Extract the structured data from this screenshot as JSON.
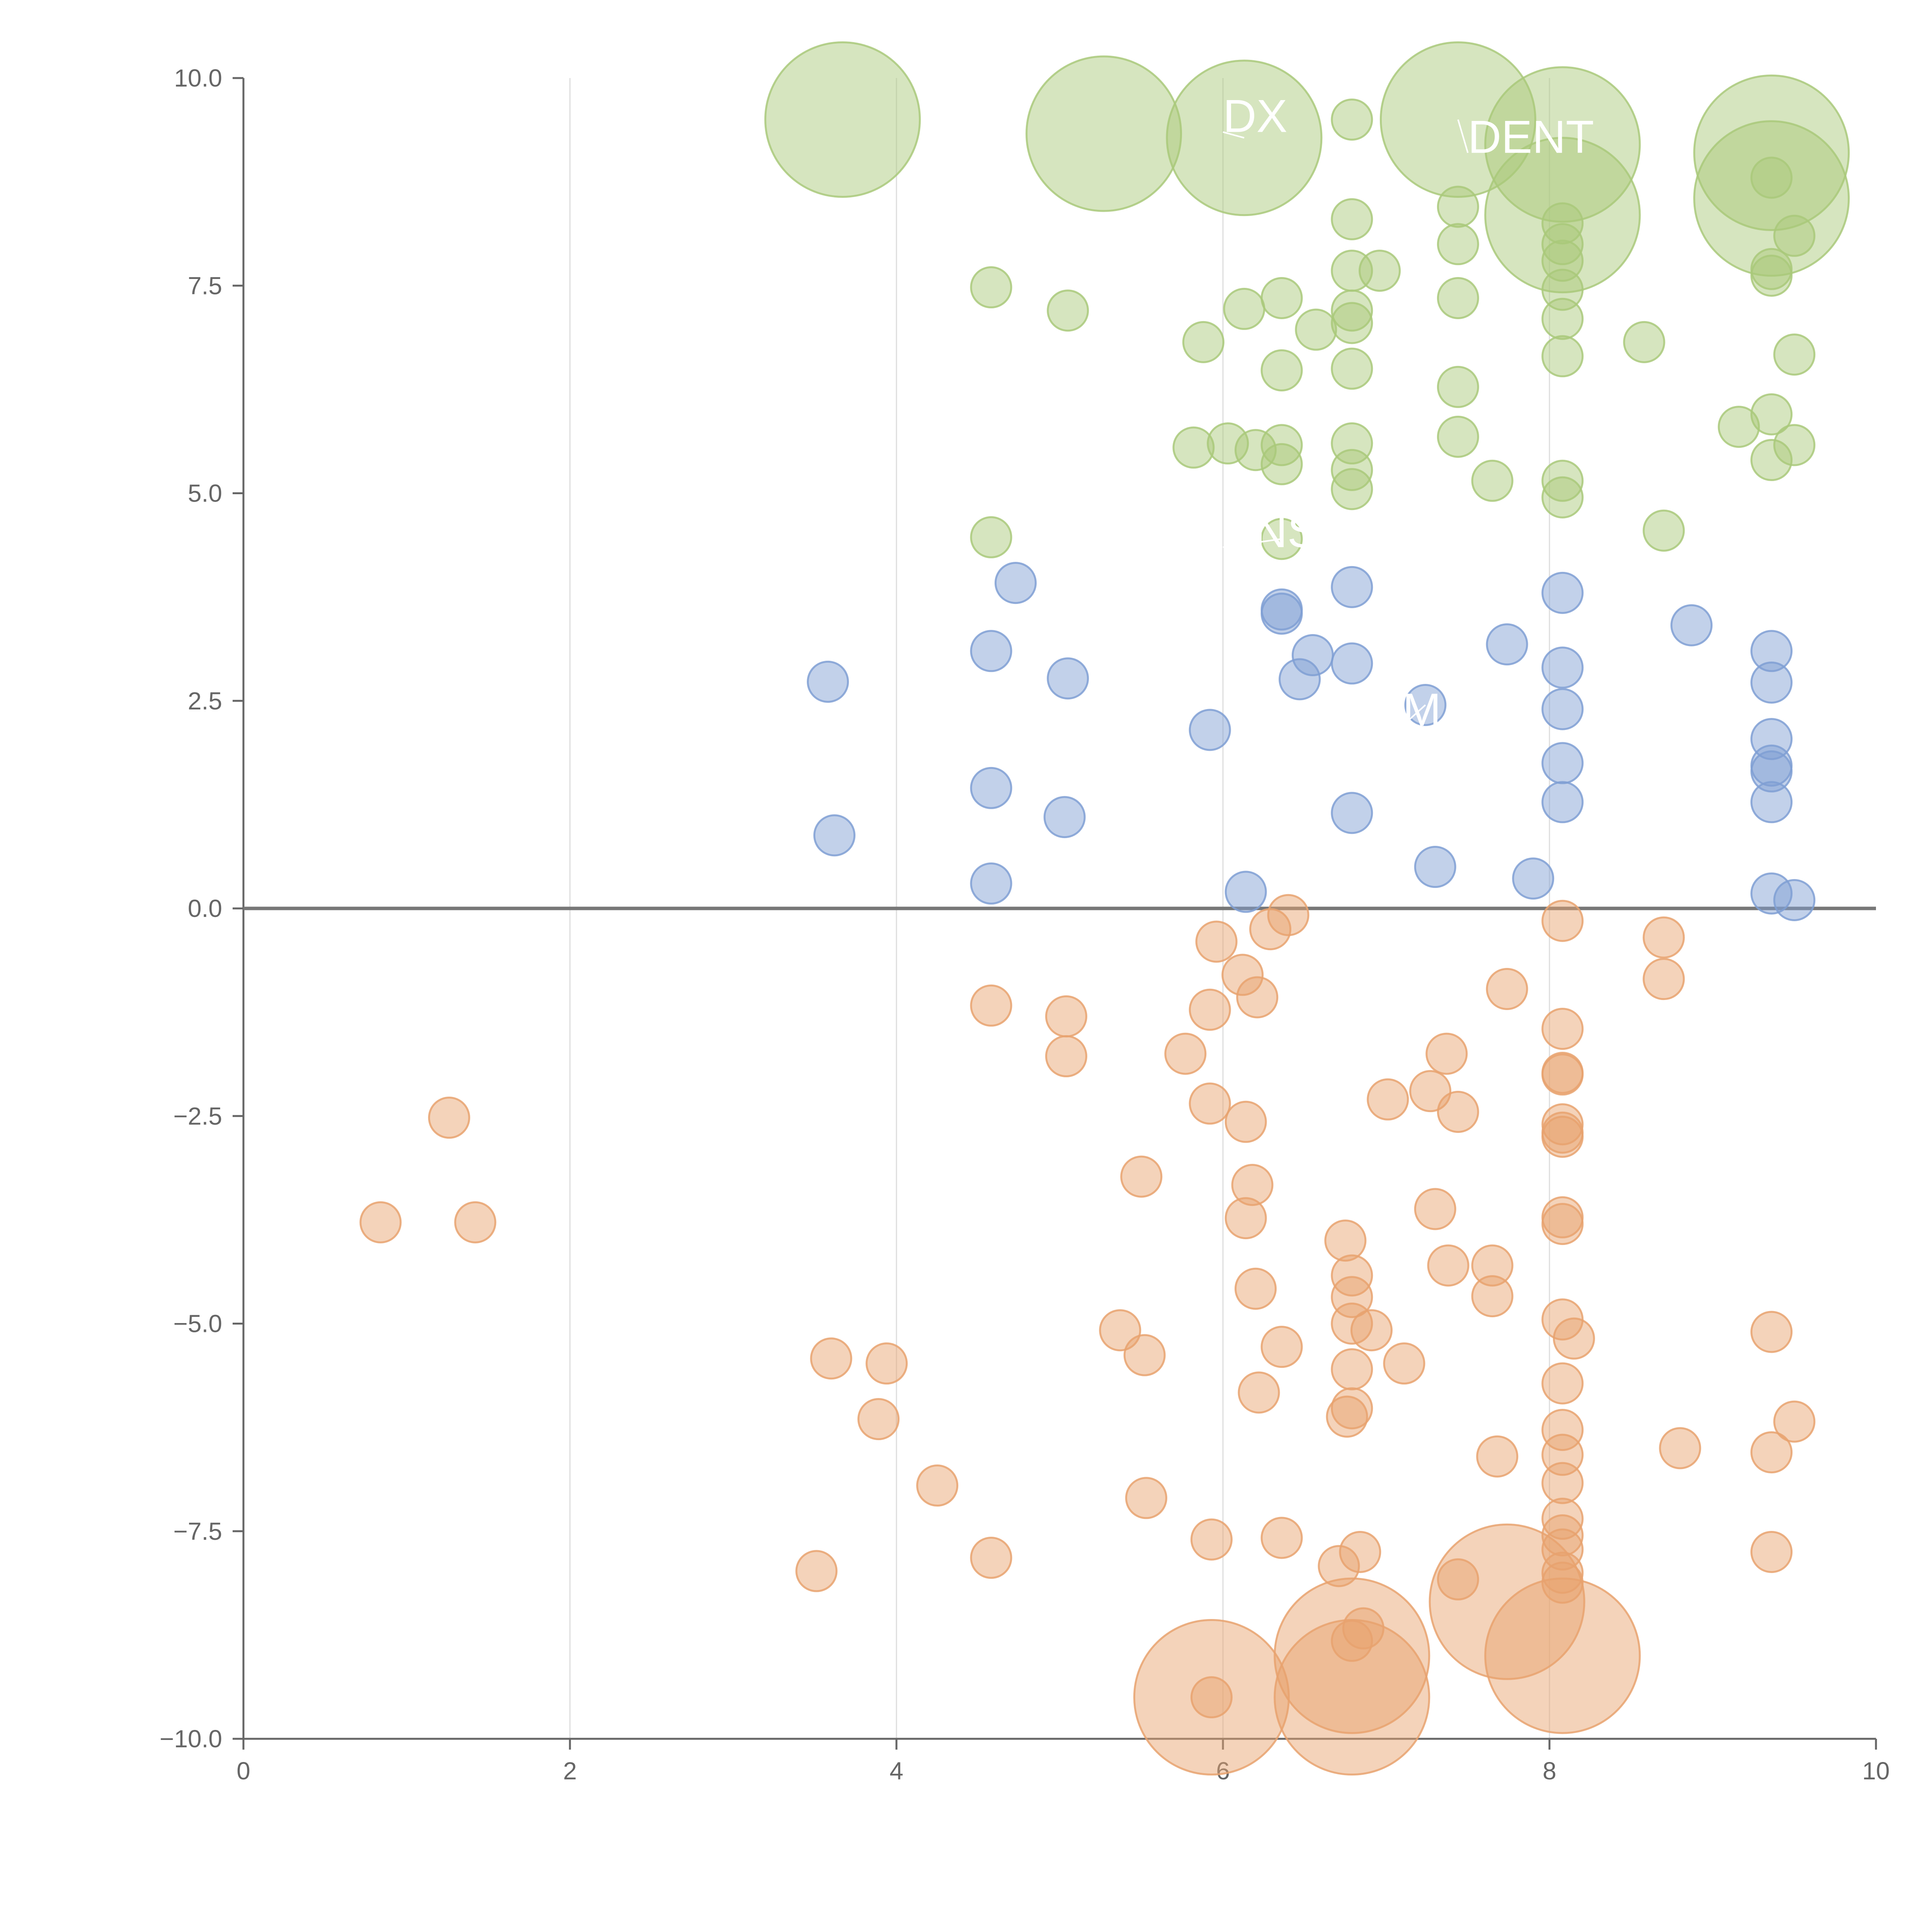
{
  "chart_data": {
    "type": "scatter",
    "title": "",
    "xlabel": "",
    "ylabel": "",
    "xlim": [
      0,
      10
    ],
    "ylim": [
      -10,
      10
    ],
    "x_ticks": [
      "0",
      "2",
      "4",
      "6",
      "8",
      "10"
    ],
    "y_ticks": [
      "10.0",
      "7.5",
      "5.0",
      "2.5",
      "0.0",
      "−2.5",
      "−5.0",
      "−7.5",
      "−10.0"
    ],
    "grid": "vertical",
    "zero_line": true,
    "colors": {
      "green": "#a9c97a",
      "blue": "#7f9fd3",
      "orange": "#e7a26f"
    },
    "series": [
      {
        "color": "green",
        "points": [
          [
            3.67,
            9.5,
            2
          ],
          [
            5.27,
            9.33,
            2
          ],
          [
            6.13,
            9.28,
            2
          ],
          [
            6.79,
            9.5,
            0.4
          ],
          [
            7.44,
            9.5,
            2
          ],
          [
            8.08,
            9.2,
            2
          ],
          [
            9.36,
            9.1,
            2
          ],
          [
            9.36,
            8.55,
            2
          ],
          [
            8.08,
            8.35,
            2
          ],
          [
            9.36,
            8.8,
            0.4
          ],
          [
            6.79,
            8.3,
            0.4
          ],
          [
            7.44,
            8.45,
            0.4
          ],
          [
            7.44,
            8.0,
            0.4
          ],
          [
            8.08,
            8.25,
            0.4
          ],
          [
            8.08,
            8.0,
            0.4
          ],
          [
            8.08,
            7.8,
            0.4
          ],
          [
            9.5,
            8.1,
            0.4
          ],
          [
            4.58,
            7.48,
            0.4
          ],
          [
            5.05,
            7.2,
            0.4
          ],
          [
            6.13,
            7.22,
            0.4
          ],
          [
            6.36,
            7.35,
            0.4
          ],
          [
            6.79,
            7.68,
            0.4
          ],
          [
            6.96,
            7.68,
            0.4
          ],
          [
            6.79,
            7.2,
            0.4
          ],
          [
            6.79,
            7.05,
            0.4
          ],
          [
            6.57,
            6.97,
            0.4
          ],
          [
            5.88,
            6.82,
            0.4
          ],
          [
            7.44,
            7.35,
            0.4
          ],
          [
            8.08,
            7.45,
            0.4
          ],
          [
            8.08,
            7.1,
            0.4
          ],
          [
            9.36,
            7.7,
            0.4
          ],
          [
            9.36,
            7.62,
            0.4
          ],
          [
            8.58,
            6.82,
            0.4
          ],
          [
            6.36,
            6.48,
            0.4
          ],
          [
            6.79,
            6.5,
            0.4
          ],
          [
            7.44,
            6.28,
            0.4
          ],
          [
            8.08,
            6.65,
            0.4
          ],
          [
            9.5,
            6.67,
            0.4
          ],
          [
            5.82,
            5.55,
            0.4
          ],
          [
            6.03,
            5.6,
            0.4
          ],
          [
            6.2,
            5.52,
            0.4
          ],
          [
            6.36,
            5.58,
            0.4
          ],
          [
            6.36,
            5.35,
            0.4
          ],
          [
            6.79,
            5.6,
            0.4
          ],
          [
            6.79,
            5.28,
            0.4
          ],
          [
            6.79,
            5.05,
            0.4
          ],
          [
            7.44,
            5.68,
            0.4
          ],
          [
            7.65,
            5.15,
            0.4
          ],
          [
            8.08,
            5.15,
            0.4
          ],
          [
            8.08,
            4.95,
            0.4
          ],
          [
            9.16,
            5.8,
            0.4
          ],
          [
            9.36,
            5.95,
            0.4
          ],
          [
            9.36,
            5.4,
            0.4
          ],
          [
            9.5,
            5.58,
            0.4
          ],
          [
            4.58,
            4.47,
            0.4
          ],
          [
            6.36,
            4.45,
            0.4
          ],
          [
            8.7,
            4.55,
            0.4
          ]
        ]
      },
      {
        "color": "blue",
        "points": [
          [
            3.58,
            2.73,
            0.4
          ],
          [
            3.62,
            0.88,
            0.4
          ],
          [
            4.58,
            3.1,
            0.4
          ],
          [
            4.58,
            1.45,
            0.4
          ],
          [
            4.58,
            0.3,
            0.4
          ],
          [
            4.73,
            3.92,
            0.4
          ],
          [
            5.05,
            2.77,
            0.4
          ],
          [
            5.03,
            1.1,
            0.4
          ],
          [
            5.92,
            2.15,
            0.4
          ],
          [
            6.14,
            0.2,
            0.4
          ],
          [
            6.36,
            3.6,
            0.4
          ],
          [
            6.36,
            3.55,
            0.4
          ],
          [
            6.47,
            2.76,
            0.4
          ],
          [
            6.55,
            3.05,
            0.4
          ],
          [
            6.79,
            3.87,
            0.4
          ],
          [
            6.79,
            2.95,
            0.4
          ],
          [
            6.79,
            1.15,
            0.4
          ],
          [
            7.24,
            2.45,
            0.4
          ],
          [
            7.3,
            0.5,
            0.4
          ],
          [
            7.74,
            3.18,
            0.4
          ],
          [
            7.9,
            0.36,
            0.4
          ],
          [
            8.08,
            3.8,
            0.4
          ],
          [
            8.08,
            2.9,
            0.4
          ],
          [
            8.08,
            2.4,
            0.4
          ],
          [
            8.08,
            1.75,
            0.4
          ],
          [
            8.08,
            1.28,
            0.4
          ],
          [
            8.87,
            3.41,
            0.4
          ],
          [
            9.36,
            3.1,
            0.4
          ],
          [
            9.36,
            2.72,
            0.4
          ],
          [
            9.36,
            2.04,
            0.4
          ],
          [
            9.36,
            1.72,
            0.4
          ],
          [
            9.36,
            1.65,
            0.4
          ],
          [
            9.36,
            1.28,
            0.4
          ],
          [
            9.36,
            0.18,
            0.4
          ],
          [
            9.5,
            0.1,
            0.4
          ]
        ]
      },
      {
        "color": "orange",
        "points": [
          [
            0.84,
            -3.78,
            0.4
          ],
          [
            1.26,
            -2.52,
            0.4
          ],
          [
            1.42,
            -3.78,
            0.4
          ],
          [
            3.51,
            -7.98,
            0.4
          ],
          [
            3.6,
            -5.42,
            0.4
          ],
          [
            3.89,
            -6.15,
            0.4
          ],
          [
            3.94,
            -5.48,
            0.4
          ],
          [
            4.25,
            -6.95,
            0.4
          ],
          [
            4.58,
            -1.17,
            0.4
          ],
          [
            4.58,
            -7.82,
            0.4
          ],
          [
            5.04,
            -1.3,
            0.4
          ],
          [
            5.04,
            -1.78,
            0.4
          ],
          [
            5.37,
            -5.08,
            0.4
          ],
          [
            5.5,
            -3.23,
            0.4
          ],
          [
            5.52,
            -5.38,
            0.4
          ],
          [
            5.53,
            -7.1,
            0.4
          ],
          [
            5.77,
            -1.75,
            0.4
          ],
          [
            5.92,
            -1.22,
            0.4
          ],
          [
            5.92,
            -2.35,
            0.4
          ],
          [
            5.93,
            -7.6,
            0.4
          ],
          [
            5.93,
            -9.5,
            2
          ],
          [
            5.93,
            -9.5,
            0.4
          ],
          [
            5.96,
            -0.4,
            0.4
          ],
          [
            6.12,
            -0.8,
            0.4
          ],
          [
            6.14,
            -2.57,
            0.4
          ],
          [
            6.14,
            -3.73,
            0.4
          ],
          [
            6.18,
            -3.33,
            0.4
          ],
          [
            6.2,
            -4.58,
            0.4
          ],
          [
            6.21,
            -1.07,
            0.4
          ],
          [
            6.22,
            -5.83,
            0.4
          ],
          [
            6.29,
            -0.25,
            0.4
          ],
          [
            6.36,
            -5.28,
            0.4
          ],
          [
            6.36,
            -7.58,
            0.4
          ],
          [
            6.4,
            -0.08,
            0.4
          ],
          [
            6.71,
            -7.92,
            0.4
          ],
          [
            6.75,
            -4.0,
            0.4
          ],
          [
            6.76,
            -6.12,
            0.4
          ],
          [
            6.79,
            -4.42,
            0.4
          ],
          [
            6.79,
            -4.68,
            0.4
          ],
          [
            6.79,
            -5.0,
            0.4
          ],
          [
            6.79,
            -5.55,
            0.4
          ],
          [
            6.79,
            -6.02,
            0.4
          ],
          [
            6.79,
            -8.82,
            0.4
          ],
          [
            6.79,
            -9.0,
            2
          ],
          [
            6.79,
            -9.5,
            2
          ],
          [
            6.84,
            -7.75,
            0.4
          ],
          [
            6.86,
            -8.67,
            0.4
          ],
          [
            6.91,
            -5.08,
            0.4
          ],
          [
            7.01,
            -2.3,
            0.4
          ],
          [
            7.11,
            -5.48,
            0.4
          ],
          [
            7.27,
            -2.2,
            0.4
          ],
          [
            7.3,
            -3.62,
            0.4
          ],
          [
            7.37,
            -1.75,
            0.4
          ],
          [
            7.38,
            -4.3,
            0.4
          ],
          [
            7.44,
            -2.45,
            0.4
          ],
          [
            7.44,
            -8.08,
            0.4
          ],
          [
            7.65,
            -4.3,
            0.4
          ],
          [
            7.65,
            -4.67,
            0.4
          ],
          [
            7.68,
            -6.6,
            0.4
          ],
          [
            7.74,
            -8.35,
            2
          ],
          [
            7.74,
            -0.97,
            0.4
          ],
          [
            8.08,
            -0.15,
            0.4
          ],
          [
            8.08,
            -1.45,
            0.4
          ],
          [
            8.08,
            -1.98,
            0.4
          ],
          [
            8.08,
            -2.0,
            0.4
          ],
          [
            8.08,
            -2.6,
            0.4
          ],
          [
            8.08,
            -2.7,
            0.4
          ],
          [
            8.08,
            -2.75,
            0.4
          ],
          [
            8.08,
            -3.72,
            0.4
          ],
          [
            8.08,
            -3.8,
            0.4
          ],
          [
            8.08,
            -4.95,
            0.4
          ],
          [
            8.15,
            -5.18,
            0.4
          ],
          [
            8.08,
            -5.72,
            0.4
          ],
          [
            8.08,
            -6.28,
            0.4
          ],
          [
            8.08,
            -6.58,
            0.4
          ],
          [
            8.08,
            -6.92,
            0.4
          ],
          [
            8.08,
            -7.35,
            0.4
          ],
          [
            8.08,
            -7.55,
            0.4
          ],
          [
            8.08,
            -7.72,
            0.4
          ],
          [
            8.08,
            -8.0,
            0.4
          ],
          [
            8.08,
            -8.12,
            0.4
          ],
          [
            8.08,
            -9.0,
            2
          ],
          [
            8.7,
            -0.35,
            0.4
          ],
          [
            8.7,
            -0.85,
            0.4
          ],
          [
            8.8,
            -6.5,
            0.4
          ],
          [
            9.36,
            -5.1,
            0.4
          ],
          [
            9.36,
            -6.55,
            0.4
          ],
          [
            9.36,
            -7.75,
            0.4
          ],
          [
            9.5,
            -6.18,
            0.4
          ]
        ]
      }
    ],
    "labels": [
      {
        "text": "DX",
        "x": 6.0,
        "y": 9.35,
        "point": [
          6.13,
          9.28
        ]
      },
      {
        "text": "DENT",
        "x": 7.5,
        "y": 9.1,
        "point": [
          7.44,
          9.5
        ]
      },
      {
        "text": "ENS",
        "x": 6.0,
        "y": 4.35,
        "point": [
          6.36,
          4.45
        ]
      },
      {
        "text": "M",
        "x": 7.1,
        "y": 2.2,
        "point": [
          7.24,
          2.45
        ]
      }
    ]
  }
}
